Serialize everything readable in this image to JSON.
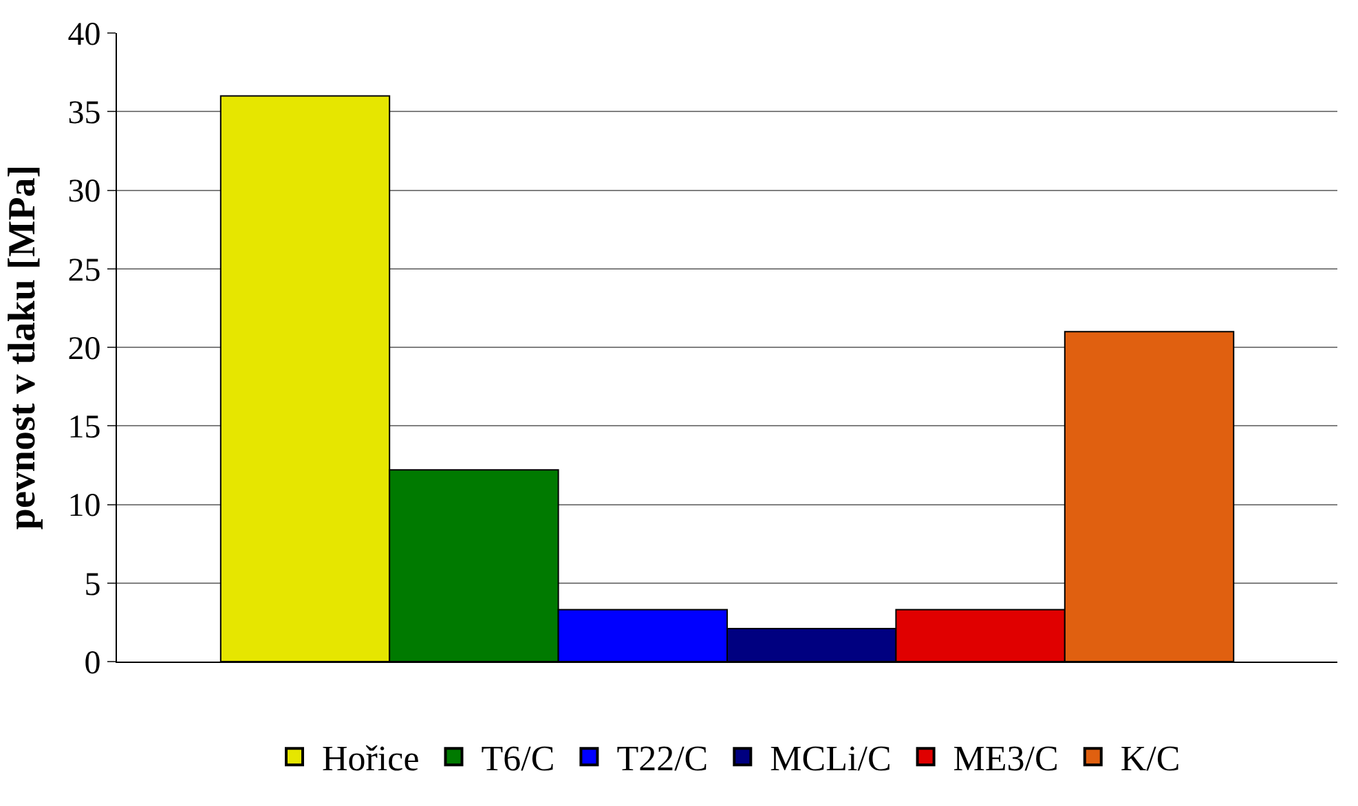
{
  "chart_data": {
    "type": "bar",
    "ylabel": "pevnost v tlaku [MPa]",
    "categories": [
      null
    ],
    "series": [
      {
        "name": "Hořice",
        "color": "#e6e600",
        "values": [
          36
        ]
      },
      {
        "name": "T6/C",
        "color": "#007a00",
        "values": [
          12.2
        ]
      },
      {
        "name": "T22/C",
        "color": "#0000ff",
        "values": [
          3.3
        ]
      },
      {
        "name": "MCLi/C",
        "color": "#000080",
        "values": [
          2.1
        ]
      },
      {
        "name": "ME3/C",
        "color": "#e00000",
        "values": [
          3.3
        ]
      },
      {
        "name": "K/C",
        "color": "#e06010",
        "values": [
          21
        ]
      }
    ],
    "ylim": [
      0,
      40
    ],
    "yticks": [
      0,
      5,
      10,
      15,
      20,
      25,
      30,
      35,
      40
    ],
    "grid": "y",
    "legend": "bottom"
  }
}
